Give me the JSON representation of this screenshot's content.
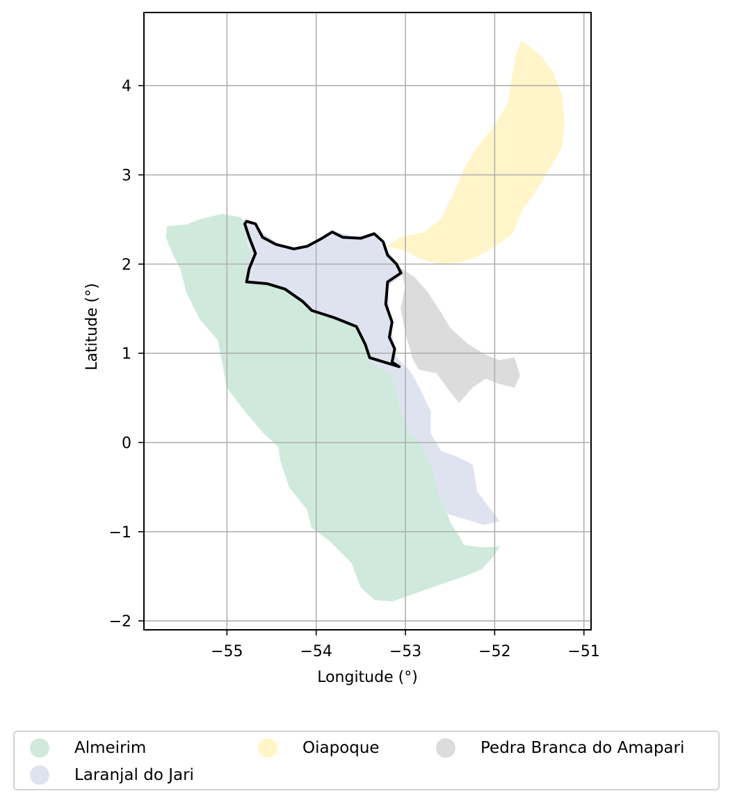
{
  "chart_data": {
    "type": "map",
    "xlabel": "Longitude (°)",
    "ylabel": "Latitude (°)",
    "xlim": [
      -55.93,
      -50.92
    ],
    "ylim": [
      -2.1,
      4.82
    ],
    "grid": true,
    "x_ticks": [
      {
        "value": -55,
        "label": "−55"
      },
      {
        "value": -54,
        "label": "−54"
      },
      {
        "value": -53,
        "label": "−53"
      },
      {
        "value": -52,
        "label": "−52"
      },
      {
        "value": -51,
        "label": "−51"
      }
    ],
    "y_ticks": [
      {
        "value": -2,
        "label": "−2"
      },
      {
        "value": -1,
        "label": "−1"
      },
      {
        "value": 0,
        "label": "0"
      },
      {
        "value": 1,
        "label": "1"
      },
      {
        "value": 2,
        "label": "2"
      },
      {
        "value": 3,
        "label": "3"
      },
      {
        "value": 4,
        "label": "4"
      }
    ],
    "regions": [
      {
        "name": "Almeirim",
        "color": "#cfeadd",
        "polygon": [
          [
            -55.67,
            2.42
          ],
          [
            -55.45,
            2.44
          ],
          [
            -55.3,
            2.5
          ],
          [
            -55.05,
            2.56
          ],
          [
            -54.85,
            2.52
          ],
          [
            -54.72,
            2.4
          ],
          [
            -54.78,
            2.25
          ],
          [
            -54.72,
            2.1
          ],
          [
            -54.78,
            1.95
          ],
          [
            -54.77,
            1.78
          ],
          [
            -54.55,
            1.77
          ],
          [
            -54.35,
            1.72
          ],
          [
            -54.15,
            1.55
          ],
          [
            -53.95,
            1.45
          ],
          [
            -53.75,
            1.4
          ],
          [
            -53.55,
            1.3
          ],
          [
            -53.45,
            1.12
          ],
          [
            -53.42,
            0.95
          ],
          [
            -53.25,
            0.88
          ],
          [
            -53.12,
            0.76
          ],
          [
            -53.05,
            0.55
          ],
          [
            -53.0,
            0.28
          ],
          [
            -52.9,
            0.1
          ],
          [
            -52.72,
            -0.08
          ],
          [
            -52.65,
            -0.3
          ],
          [
            -52.6,
            -0.6
          ],
          [
            -52.5,
            -0.9
          ],
          [
            -52.4,
            -1.05
          ],
          [
            -52.35,
            -1.15
          ],
          [
            -52.15,
            -1.18
          ],
          [
            -51.95,
            -1.17
          ],
          [
            -52.02,
            -1.28
          ],
          [
            -52.15,
            -1.42
          ],
          [
            -52.35,
            -1.5
          ],
          [
            -52.7,
            -1.62
          ],
          [
            -52.98,
            -1.72
          ],
          [
            -53.15,
            -1.78
          ],
          [
            -53.35,
            -1.76
          ],
          [
            -53.5,
            -1.62
          ],
          [
            -53.6,
            -1.35
          ],
          [
            -53.85,
            -1.1
          ],
          [
            -54.05,
            -0.95
          ],
          [
            -54.1,
            -0.75
          ],
          [
            -54.3,
            -0.5
          ],
          [
            -54.4,
            -0.2
          ],
          [
            -54.42,
            -0.05
          ],
          [
            -54.6,
            0.12
          ],
          [
            -54.82,
            0.38
          ],
          [
            -55.0,
            0.62
          ],
          [
            -55.05,
            0.9
          ],
          [
            -55.1,
            1.15
          ],
          [
            -55.3,
            1.38
          ],
          [
            -55.45,
            1.68
          ],
          [
            -55.52,
            1.95
          ],
          [
            -55.6,
            2.1
          ],
          [
            -55.68,
            2.3
          ]
        ]
      },
      {
        "name": "Laranjal do Jari",
        "color": "#dfe3f0",
        "polygon": [
          [
            -54.78,
            2.48
          ],
          [
            -54.6,
            2.35
          ],
          [
            -54.4,
            2.2
          ],
          [
            -54.25,
            2.16
          ],
          [
            -54.05,
            2.2
          ],
          [
            -53.9,
            2.3
          ],
          [
            -53.75,
            2.35
          ],
          [
            -53.55,
            2.3
          ],
          [
            -53.35,
            2.32
          ],
          [
            -53.25,
            2.2
          ],
          [
            -53.1,
            2.02
          ],
          [
            -53.05,
            1.88
          ],
          [
            -53.2,
            1.75
          ],
          [
            -53.18,
            1.45
          ],
          [
            -53.15,
            1.2
          ],
          [
            -53.1,
            0.95
          ],
          [
            -52.95,
            0.8
          ],
          [
            -52.85,
            0.62
          ],
          [
            -52.72,
            0.35
          ],
          [
            -52.72,
            0.1
          ],
          [
            -52.6,
            -0.1
          ],
          [
            -52.45,
            -0.15
          ],
          [
            -52.25,
            -0.25
          ],
          [
            -52.2,
            -0.55
          ],
          [
            -52.05,
            -0.75
          ],
          [
            -51.95,
            -0.88
          ],
          [
            -52.12,
            -0.92
          ],
          [
            -52.35,
            -0.85
          ],
          [
            -52.52,
            -0.8
          ],
          [
            -52.62,
            -0.6
          ],
          [
            -52.7,
            -0.28
          ],
          [
            -52.8,
            -0.05
          ],
          [
            -52.95,
            0.12
          ],
          [
            -53.05,
            0.35
          ],
          [
            -53.1,
            0.6
          ],
          [
            -53.18,
            0.78
          ],
          [
            -53.38,
            0.9
          ],
          [
            -53.45,
            1.15
          ],
          [
            -53.6,
            1.32
          ],
          [
            -53.85,
            1.42
          ],
          [
            -54.1,
            1.52
          ],
          [
            -54.35,
            1.72
          ],
          [
            -54.55,
            1.77
          ],
          [
            -54.77,
            1.78
          ],
          [
            -54.78,
            1.98
          ],
          [
            -54.72,
            2.12
          ],
          [
            -54.78,
            2.3
          ]
        ]
      },
      {
        "name": "Oiapoque",
        "color": "#fff5c9",
        "polygon": [
          [
            -51.7,
            4.5
          ],
          [
            -51.5,
            4.35
          ],
          [
            -51.35,
            4.15
          ],
          [
            -51.25,
            3.9
          ],
          [
            -51.22,
            3.6
          ],
          [
            -51.25,
            3.3
          ],
          [
            -51.4,
            3.05
          ],
          [
            -51.55,
            2.8
          ],
          [
            -51.7,
            2.6
          ],
          [
            -51.8,
            2.35
          ],
          [
            -52.0,
            2.2
          ],
          [
            -52.2,
            2.08
          ],
          [
            -52.4,
            2.02
          ],
          [
            -52.6,
            2.0
          ],
          [
            -52.8,
            2.05
          ],
          [
            -53.0,
            2.15
          ],
          [
            -53.2,
            2.2
          ],
          [
            -53.05,
            2.3
          ],
          [
            -52.8,
            2.35
          ],
          [
            -52.6,
            2.5
          ],
          [
            -52.45,
            2.8
          ],
          [
            -52.35,
            3.05
          ],
          [
            -52.2,
            3.3
          ],
          [
            -52.0,
            3.55
          ],
          [
            -51.85,
            3.8
          ],
          [
            -51.8,
            4.1
          ],
          [
            -51.76,
            4.35
          ]
        ]
      },
      {
        "name": "Pedra Branca do Amapari",
        "color": "#dcdcdc",
        "polygon": [
          [
            -53.05,
            1.95
          ],
          [
            -52.9,
            1.85
          ],
          [
            -52.75,
            1.68
          ],
          [
            -52.6,
            1.45
          ],
          [
            -52.5,
            1.28
          ],
          [
            -52.3,
            1.1
          ],
          [
            -52.1,
            0.98
          ],
          [
            -51.95,
            0.92
          ],
          [
            -51.78,
            0.95
          ],
          [
            -51.72,
            0.75
          ],
          [
            -51.78,
            0.62
          ],
          [
            -51.95,
            0.66
          ],
          [
            -52.1,
            0.72
          ],
          [
            -52.25,
            0.62
          ],
          [
            -52.4,
            0.45
          ],
          [
            -52.52,
            0.6
          ],
          [
            -52.65,
            0.78
          ],
          [
            -52.85,
            0.82
          ],
          [
            -52.92,
            0.95
          ],
          [
            -53.0,
            1.25
          ],
          [
            -53.05,
            1.5
          ],
          [
            -53.0,
            1.75
          ]
        ]
      }
    ],
    "highlighted_region_outline": [
      [
        -54.78,
        2.48
      ],
      [
        -54.68,
        2.45
      ],
      [
        -54.6,
        2.3
      ],
      [
        -54.45,
        2.22
      ],
      [
        -54.25,
        2.17
      ],
      [
        -54.1,
        2.2
      ],
      [
        -53.95,
        2.28
      ],
      [
        -53.82,
        2.36
      ],
      [
        -53.7,
        2.3
      ],
      [
        -53.5,
        2.29
      ],
      [
        -53.35,
        2.34
      ],
      [
        -53.25,
        2.25
      ],
      [
        -53.2,
        2.1
      ],
      [
        -53.1,
        2.0
      ],
      [
        -53.05,
        1.9
      ],
      [
        -53.2,
        1.8
      ],
      [
        -53.22,
        1.55
      ],
      [
        -53.15,
        1.35
      ],
      [
        -53.18,
        1.18
      ],
      [
        -53.12,
        1.05
      ],
      [
        -53.15,
        0.9
      ],
      [
        -53.07,
        0.85
      ],
      [
        -53.4,
        0.95
      ],
      [
        -53.45,
        1.1
      ],
      [
        -53.55,
        1.3
      ],
      [
        -53.8,
        1.4
      ],
      [
        -54.05,
        1.48
      ],
      [
        -54.15,
        1.58
      ],
      [
        -54.35,
        1.72
      ],
      [
        -54.55,
        1.78
      ],
      [
        -54.78,
        1.8
      ],
      [
        -54.75,
        1.95
      ],
      [
        -54.68,
        2.12
      ],
      [
        -54.75,
        2.3
      ],
      [
        -54.8,
        2.45
      ]
    ]
  },
  "legend": {
    "placement": "bottom",
    "items": [
      {
        "label": "Almeirim",
        "color": "#cfeadd"
      },
      {
        "label": "Oiapoque",
        "color": "#fff5c9"
      },
      {
        "label": "Pedra Branca do Amapari",
        "color": "#dcdcdc"
      },
      {
        "label": "Laranjal do Jari",
        "color": "#dfe3f0"
      }
    ]
  }
}
